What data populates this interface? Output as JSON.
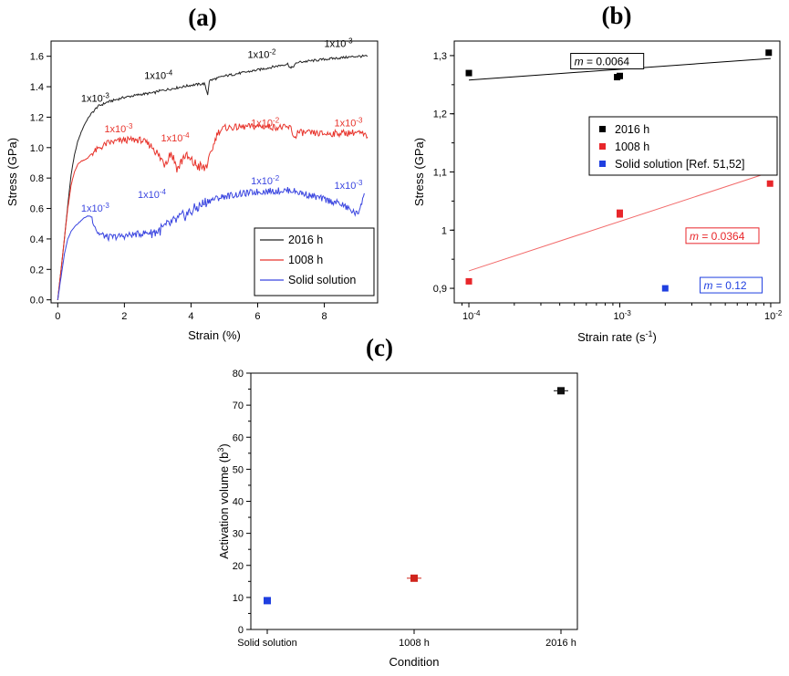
{
  "panel_labels": {
    "a": "(a)",
    "b": "(b)",
    "c": "(c)"
  },
  "chart_data": [
    {
      "id": "a",
      "type": "line",
      "xlabel": "Strain (%)",
      "ylabel": "Stress (GPa)",
      "xlim": [
        -0.2,
        9.6
      ],
      "ylim": [
        -0.02,
        1.7
      ],
      "xticks": [
        0,
        2,
        4,
        6,
        8
      ],
      "xtick_labels": [
        "0",
        "2",
        "4",
        "6",
        "8"
      ],
      "yticks": [
        0,
        0.2,
        0.4,
        0.6,
        0.8,
        1.0,
        1.2,
        1.4,
        1.6
      ],
      "ytick_labels": [
        "0.0",
        "0.2",
        "0.4",
        "0.6",
        "0.8",
        "1.0",
        "1.2",
        "1.4",
        "1.6"
      ],
      "legend_position": "bottom-right",
      "series": [
        {
          "name": "2016 h",
          "color": "#222222",
          "x": [
            0,
            0.1,
            0.2,
            0.3,
            0.4,
            0.5,
            0.6,
            0.7,
            0.8,
            0.9,
            1.0,
            1.2,
            1.5,
            2.0,
            2.5,
            2.9,
            3.0,
            3.5,
            4.0,
            4.4,
            4.5,
            4.55,
            5.0,
            6.0,
            6.9,
            7.0,
            7.2,
            8.0,
            9.0,
            9.3
          ],
          "y": [
            0,
            0.2,
            0.4,
            0.62,
            0.82,
            0.95,
            1.04,
            1.1,
            1.15,
            1.19,
            1.22,
            1.27,
            1.3,
            1.33,
            1.35,
            1.36,
            1.37,
            1.39,
            1.41,
            1.42,
            1.35,
            1.44,
            1.47,
            1.51,
            1.55,
            1.52,
            1.56,
            1.58,
            1.6,
            1.6
          ]
        },
        {
          "name": "1008 h",
          "color": "#e8342c",
          "x": [
            0,
            0.1,
            0.2,
            0.3,
            0.4,
            0.5,
            0.6,
            0.7,
            0.8,
            0.9,
            1.0,
            1.5,
            2.0,
            2.5,
            2.9,
            3.0,
            3.2,
            3.4,
            3.6,
            3.8,
            4.0,
            4.2,
            4.4,
            4.5,
            4.8,
            5.0,
            6.0,
            7.0,
            7.1,
            7.2,
            8.0,
            9.0,
            9.3
          ],
          "y": [
            0,
            0.2,
            0.4,
            0.6,
            0.75,
            0.84,
            0.89,
            0.91,
            0.92,
            0.93,
            0.96,
            1.03,
            1.05,
            1.05,
            1.0,
            0.95,
            0.9,
            0.97,
            0.86,
            0.95,
            0.91,
            0.88,
            0.86,
            0.9,
            1.1,
            1.13,
            1.14,
            1.13,
            1.06,
            1.1,
            1.09,
            1.1,
            1.07
          ]
        },
        {
          "name": "Solid solution",
          "color": "#3b46e0",
          "x": [
            0,
            0.1,
            0.2,
            0.3,
            0.4,
            0.5,
            0.6,
            0.7,
            0.8,
            0.9,
            1.0,
            1.2,
            1.5,
            2.0,
            3.0,
            4.0,
            4.5,
            5.0,
            6.0,
            7.0,
            7.5,
            8.0,
            8.5,
            9.0,
            9.2
          ],
          "y": [
            0,
            0.15,
            0.3,
            0.4,
            0.45,
            0.48,
            0.5,
            0.52,
            0.54,
            0.55,
            0.55,
            0.44,
            0.41,
            0.42,
            0.45,
            0.58,
            0.65,
            0.68,
            0.71,
            0.72,
            0.69,
            0.66,
            0.63,
            0.56,
            0.7
          ]
        }
      ],
      "annotations": [
        {
          "base": "1x10",
          "exp": "-3",
          "x": 0.7,
          "y": 1.3,
          "color": "#000000"
        },
        {
          "base": "1x10",
          "exp": "-4",
          "x": 2.6,
          "y": 1.45,
          "color": "#000000"
        },
        {
          "base": "1x10",
          "exp": "-2",
          "x": 5.7,
          "y": 1.59,
          "color": "#000000"
        },
        {
          "base": "1x10",
          "exp": "-3",
          "x": 8.0,
          "y": 1.66,
          "color": "#000000"
        },
        {
          "base": "1x10",
          "exp": "-3",
          "x": 1.4,
          "y": 1.1,
          "color": "#e8342c"
        },
        {
          "base": "1x10",
          "exp": "-4",
          "x": 3.1,
          "y": 1.04,
          "color": "#e8342c"
        },
        {
          "base": "1x10",
          "exp": "-2",
          "x": 5.8,
          "y": 1.14,
          "color": "#e8342c"
        },
        {
          "base": "1x10",
          "exp": "-3",
          "x": 8.3,
          "y": 1.14,
          "color": "#e8342c"
        },
        {
          "base": "1x10",
          "exp": "-3",
          "x": 0.7,
          "y": 0.58,
          "color": "#3b46e0"
        },
        {
          "base": "1x10",
          "exp": "-4",
          "x": 2.4,
          "y": 0.67,
          "color": "#3b46e0"
        },
        {
          "base": "1x10",
          "exp": "-2",
          "x": 5.8,
          "y": 0.76,
          "color": "#3b46e0"
        },
        {
          "base": "1x10",
          "exp": "-3",
          "x": 8.3,
          "y": 0.73,
          "color": "#3b46e0"
        }
      ]
    },
    {
      "id": "b",
      "type": "scatter",
      "xlabel": "Strain rate (s",
      "xlabel_exp": "-1",
      "xlabel_tail": ")",
      "ylabel": "Stress (GPa)",
      "xscale": "log",
      "xlim": [
        8e-05,
        0.0115
      ],
      "ylim": [
        0.875,
        1.325
      ],
      "xticks": [
        0.0001,
        0.001,
        0.01
      ],
      "xtick_labels": [
        {
          "base": "10",
          "exp": "-4"
        },
        {
          "base": "10",
          "exp": "-3"
        },
        {
          "base": "10",
          "exp": "-2"
        }
      ],
      "yticks": [
        0.9,
        1.0,
        1.1,
        1.2,
        1.3
      ],
      "ytick_labels": [
        "0,9",
        "1",
        "1,1",
        "1,2",
        "1,3"
      ],
      "legend_position": "top-right",
      "series": [
        {
          "name": "2016 h",
          "color": "#000000",
          "x": [
            0.0001,
            0.00096,
            0.001,
            0.0097
          ],
          "y": [
            1.27,
            1.263,
            1.265,
            1.305
          ]
        },
        {
          "name": "1008 h",
          "color": "#e8262a",
          "x": [
            0.0001,
            0.001,
            0.001,
            0.0099
          ],
          "y": [
            0.912,
            1.027,
            1.03,
            1.08
          ]
        },
        {
          "name": "Solid solution [Ref. 51,52]",
          "color": "#1f3fe0",
          "x": [
            0.002
          ],
          "y": [
            0.9
          ]
        }
      ],
      "fit_lines": [
        {
          "color": "#000000",
          "x": [
            0.0001,
            0.01
          ],
          "y": [
            1.258,
            1.295
          ]
        },
        {
          "color": "#f26a6a",
          "x": [
            0.0001,
            0.01
          ],
          "y": [
            0.93,
            1.1
          ]
        }
      ],
      "slope_labels": [
        {
          "text": "= 0.0064",
          "prefix": "m",
          "x": 0.0005,
          "y": 1.285,
          "color": "#000000"
        },
        {
          "text": "= 0.0364",
          "prefix": "m",
          "x": 0.0029,
          "y": 0.985,
          "color": "#e8262a"
        },
        {
          "text": "= 0.12",
          "prefix": "m",
          "x": 0.0036,
          "y": 0.9,
          "color": "#1f3fe0"
        }
      ]
    },
    {
      "id": "c",
      "type": "scatter",
      "xlabel": "Condition",
      "ylabel": "Activation volume (b",
      "ylabel_exp": "3",
      "ylabel_tail": ")",
      "categories": [
        "Solid solution",
        "1008 h",
        "2016 h"
      ],
      "ylim": [
        0,
        80
      ],
      "yticks": [
        0,
        10,
        20,
        30,
        40,
        50,
        60,
        70,
        80
      ],
      "ytick_labels": [
        "0",
        "10",
        "20",
        "30",
        "40",
        "50",
        "60",
        "70",
        "80"
      ],
      "series": [
        {
          "category": "Solid solution",
          "value": 9.0,
          "color": "#1f3fe0",
          "error": 0
        },
        {
          "category": "1008 h",
          "value": 16.0,
          "color": "#d0241c",
          "error": 1.0
        },
        {
          "category": "2016 h",
          "value": 74.5,
          "color": "#111111",
          "error": 1.0
        }
      ]
    }
  ]
}
